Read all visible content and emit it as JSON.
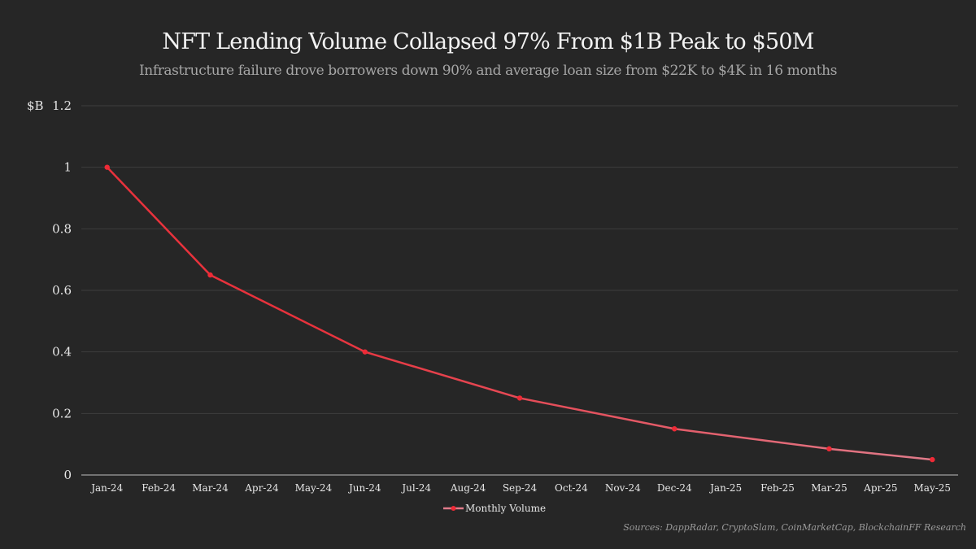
{
  "chart_data": {
    "type": "line",
    "title": "NFT Lending Volume Collapsed 97% From $1B Peak to $50M",
    "subtitle": "Infrastructure failure drove borrowers down 90% and average loan size from $22K to $4K in 16 months",
    "ylabel": "$B",
    "xlabel": "",
    "ylim": [
      0,
      1.2
    ],
    "yticks": [
      0,
      0.2,
      0.4,
      0.6,
      0.8,
      1,
      1.2
    ],
    "ytick_labels": [
      "0",
      "0.2",
      "0.4",
      "0.6",
      "0.8",
      "1",
      "1.2"
    ],
    "grid": true,
    "categories": [
      "Jan-24",
      "Feb-24",
      "Mar-24",
      "Apr-24",
      "May-24",
      "Jun-24",
      "Jul-24",
      "Aug-24",
      "Sep-24",
      "Oct-24",
      "Nov-24",
      "Dec-24",
      "Jan-25",
      "Feb-25",
      "Mar-25",
      "Apr-25",
      "May-25"
    ],
    "series": [
      {
        "name": "Monthly Volume",
        "color_start": "#e8323c",
        "color_end": "#e07b8a",
        "marker_color": "#ee2a36",
        "points": [
          {
            "x": "Jan-24",
            "y": 1.0
          },
          {
            "x": "Mar-24",
            "y": 0.65
          },
          {
            "x": "Jun-24",
            "y": 0.4
          },
          {
            "x": "Sep-24",
            "y": 0.25
          },
          {
            "x": "Dec-24",
            "y": 0.15
          },
          {
            "x": "Mar-25",
            "y": 0.085
          },
          {
            "x": "May-25",
            "y": 0.05
          }
        ]
      }
    ],
    "legend": {
      "position": "bottom-center",
      "entries": [
        "Monthly Volume"
      ]
    },
    "source": "Sources: DappRadar, CryptoSlam, CoinMarketCap, BlockchainFF Research"
  }
}
